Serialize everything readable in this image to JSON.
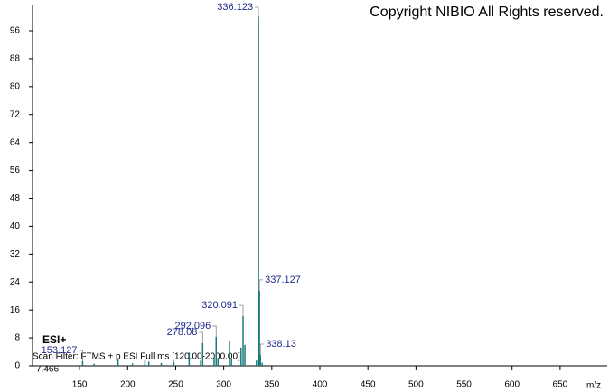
{
  "chart_data": {
    "type": "spectrum",
    "title": "Copyright NIBIO All Rights reserved.",
    "ion_mode": "ESI+",
    "scan_filter": "Scan Filter: FTMS + p ESI Full ms [120.00-2000.00]",
    "retention_time": "7.466",
    "x_label": "m/z",
    "xlim": [
      101,
      699
    ],
    "xticks": [
      150,
      200,
      250,
      300,
      350,
      400,
      450,
      500,
      550,
      600,
      650
    ],
    "ylim": [
      0,
      103.5
    ],
    "yticks": [
      0,
      8,
      16,
      24,
      32,
      40,
      48,
      56,
      64,
      72,
      80,
      88,
      96
    ],
    "series": [
      {
        "color": "#1a7a7a",
        "show_labels": true,
        "x": [
          153.127,
          278.08,
          292.096,
          320.091,
          336.123,
          337.127,
          338.13
        ],
        "values": [
          1.3,
          6.5,
          8.3,
          14.2,
          100,
          21.5,
          3.1
        ]
      },
      {
        "color": "#1a7a7a",
        "show_labels": false,
        "x": [
          165,
          190,
          205,
          218,
          222,
          235,
          248,
          264,
          276,
          290,
          294,
          306,
          308,
          318,
          322,
          334,
          340
        ],
        "values": [
          0.6,
          1.8,
          0.7,
          1.6,
          1.2,
          0.8,
          1.1,
          3.8,
          1.5,
          2.5,
          1.8,
          7.0,
          2.0,
          5.2,
          6.0,
          1.5,
          0.9
        ]
      }
    ]
  }
}
